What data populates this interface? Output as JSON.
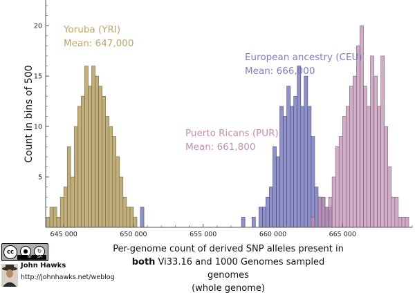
{
  "chart_data": {
    "type": "histogram",
    "ylabel": "Count in bins of 500",
    "xlabel_lines": [
      {
        "pre": "",
        "bold": "",
        "post": "Per-genome count of derived SNP alleles present in"
      },
      {
        "pre": "",
        "bold": "both",
        "post": " Vi33.16 and 1000 Genomes sampled genomes"
      },
      {
        "pre": "",
        "bold": "",
        "post": "(whole genome)"
      }
    ],
    "bin_width": 500,
    "xlim": [
      643700,
      670000
    ],
    "ylim": [
      0,
      22
    ],
    "x_ticks": [
      645000,
      650000,
      655000,
      660000,
      665000
    ],
    "x_tick_labels": [
      "645 000",
      "650 000",
      "655 000",
      "660 000",
      "665 000"
    ],
    "y_ticks": [
      5,
      10,
      15,
      20
    ],
    "y_tick_labels": [
      "5",
      "10",
      "15",
      "20"
    ],
    "grid": false,
    "series": [
      {
        "name": "Yoruba (YRI)",
        "annotation_lines": [
          "Yoruba (YRI)",
          "Mean: 647,000"
        ],
        "color": "#b9a66b",
        "stroke": "#6f6540",
        "bins": [
          [
            643750,
            1
          ],
          [
            644000,
            2
          ],
          [
            644250,
            2
          ],
          [
            644500,
            1
          ],
          [
            644750,
            3
          ],
          [
            645000,
            4
          ],
          [
            645250,
            8
          ],
          [
            645500,
            5
          ],
          [
            645750,
            10
          ],
          [
            646000,
            12
          ],
          [
            646250,
            13
          ],
          [
            646500,
            16
          ],
          [
            646750,
            14
          ],
          [
            647000,
            16
          ],
          [
            647250,
            15
          ],
          [
            647500,
            14
          ],
          [
            647750,
            13
          ],
          [
            648000,
            11
          ],
          [
            648250,
            10
          ],
          [
            648500,
            9
          ],
          [
            648750,
            7
          ],
          [
            649000,
            5
          ],
          [
            649250,
            3
          ],
          [
            649500,
            2
          ],
          [
            649750,
            2
          ],
          [
            650000,
            1
          ]
        ]
      },
      {
        "name": "Puerto Ricans (PUR)",
        "annotation_lines": [
          "Puerto Ricans (PUR)",
          "Mean: 661,800"
        ],
        "color": "#7b7fbd",
        "stroke": "#44467a",
        "bins": [
          [
            650500,
            2
          ],
          [
            657750,
            1
          ],
          [
            658500,
            1
          ],
          [
            659000,
            2
          ],
          [
            659250,
            2
          ],
          [
            659500,
            3
          ],
          [
            659750,
            4
          ],
          [
            660000,
            8
          ],
          [
            660250,
            7
          ],
          [
            660500,
            12
          ],
          [
            660750,
            11
          ],
          [
            661000,
            14
          ],
          [
            661250,
            12
          ],
          [
            661500,
            13
          ],
          [
            661750,
            16
          ],
          [
            662000,
            12
          ],
          [
            662250,
            15
          ],
          [
            662500,
            12
          ],
          [
            662750,
            9
          ],
          [
            663000,
            4
          ],
          [
            663250,
            3
          ],
          [
            663500,
            3
          ],
          [
            663750,
            2
          ],
          [
            664000,
            2
          ]
        ]
      },
      {
        "name": "European ancestry (CEU)",
        "annotation_lines": [
          "European ancestry (CEU)",
          "Mean: 666,000"
        ],
        "color": "#bf8fb1",
        "stroke": "#7a5670",
        "bins": [
          [
            662750,
            1
          ],
          [
            663250,
            3
          ],
          [
            663500,
            3
          ],
          [
            663750,
            2
          ],
          [
            664000,
            3
          ],
          [
            664250,
            5
          ],
          [
            664500,
            8
          ],
          [
            664750,
            9
          ],
          [
            665000,
            11
          ],
          [
            665250,
            12
          ],
          [
            665500,
            14
          ],
          [
            665750,
            15
          ],
          [
            666000,
            18
          ],
          [
            666250,
            20
          ],
          [
            666500,
            14
          ],
          [
            666750,
            12
          ],
          [
            667000,
            17
          ],
          [
            667250,
            15
          ],
          [
            667500,
            12
          ],
          [
            667750,
            17
          ],
          [
            668000,
            10
          ],
          [
            668250,
            6
          ],
          [
            668500,
            3
          ],
          [
            668750,
            3
          ],
          [
            669000,
            1
          ],
          [
            669250,
            1
          ],
          [
            669500,
            1
          ]
        ]
      }
    ]
  },
  "credit": {
    "license_badge": "cc",
    "license_icons": [
      "by-icon",
      "sa-icon"
    ],
    "license_tags": [
      "BY",
      "SA"
    ],
    "author": "John Hawks",
    "url": "http://johnhawks.net/weblog"
  }
}
